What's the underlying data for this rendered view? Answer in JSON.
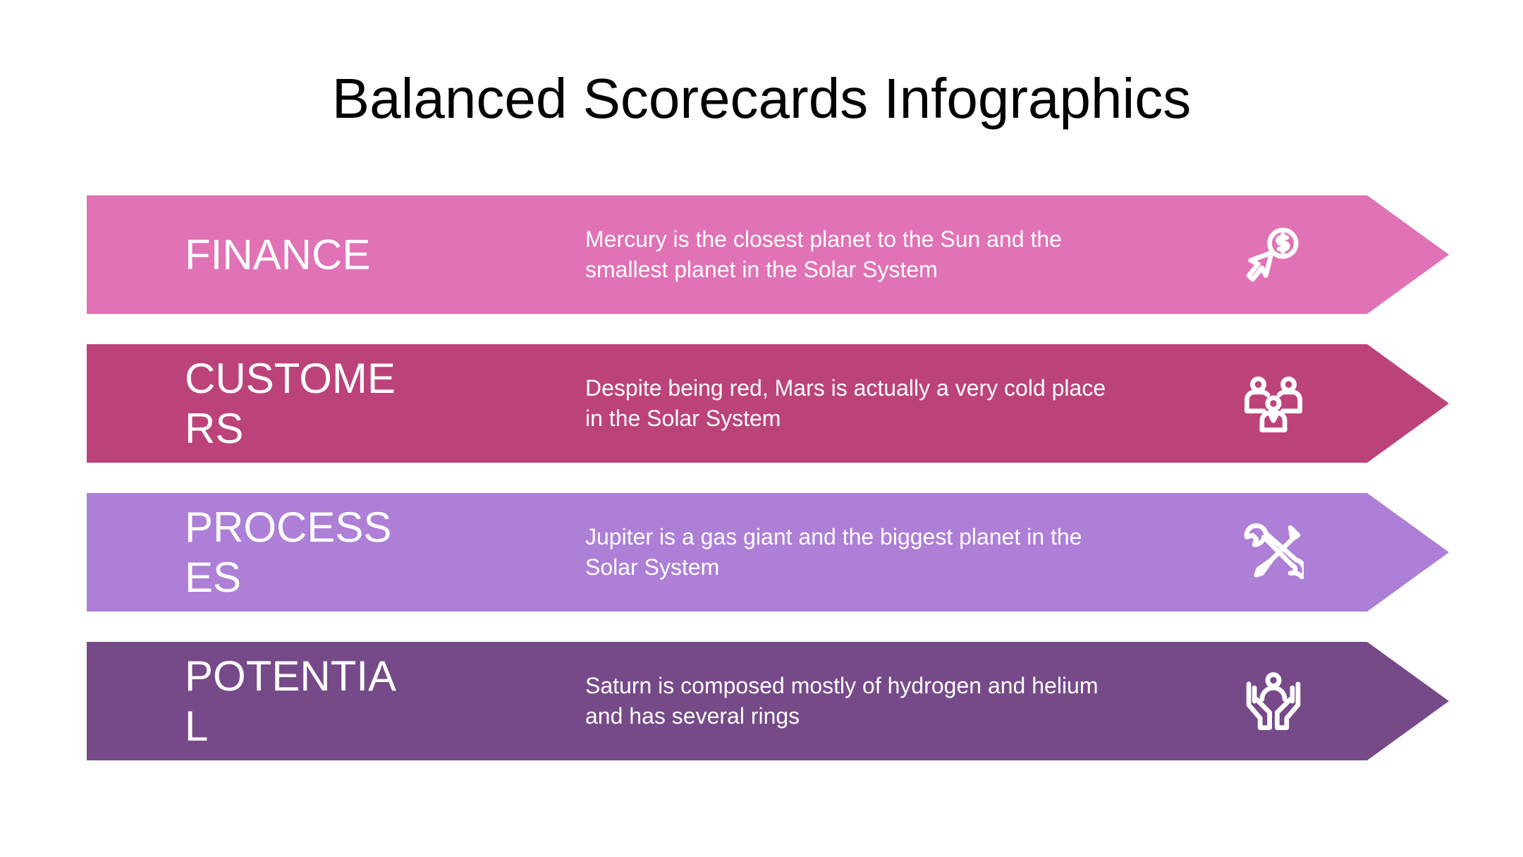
{
  "title": "Balanced Scorecards Infographics",
  "rows": [
    {
      "label": "FINANCE",
      "description": "Mercury is the closest planet to the Sun and the smallest planet in the Solar System",
      "color": "#E072B5",
      "icon": "dollar-cursor-icon"
    },
    {
      "label": "CUSTOMERS",
      "description": "Despite being red, Mars is actually a very cold place in the Solar System",
      "color": "#BC437A",
      "icon": "customers-group-icon"
    },
    {
      "label": "PROCESSES",
      "description": "Jupiter is a gas giant and the biggest planet in the Solar System",
      "color": "#AD7FD6",
      "icon": "wrench-screwdriver-icon"
    },
    {
      "label": "POTENTIAL",
      "description": "Saturn is composed mostly of hydrogen and helium and has several rings",
      "color": "#764A88",
      "icon": "hands-person-icon"
    }
  ]
}
